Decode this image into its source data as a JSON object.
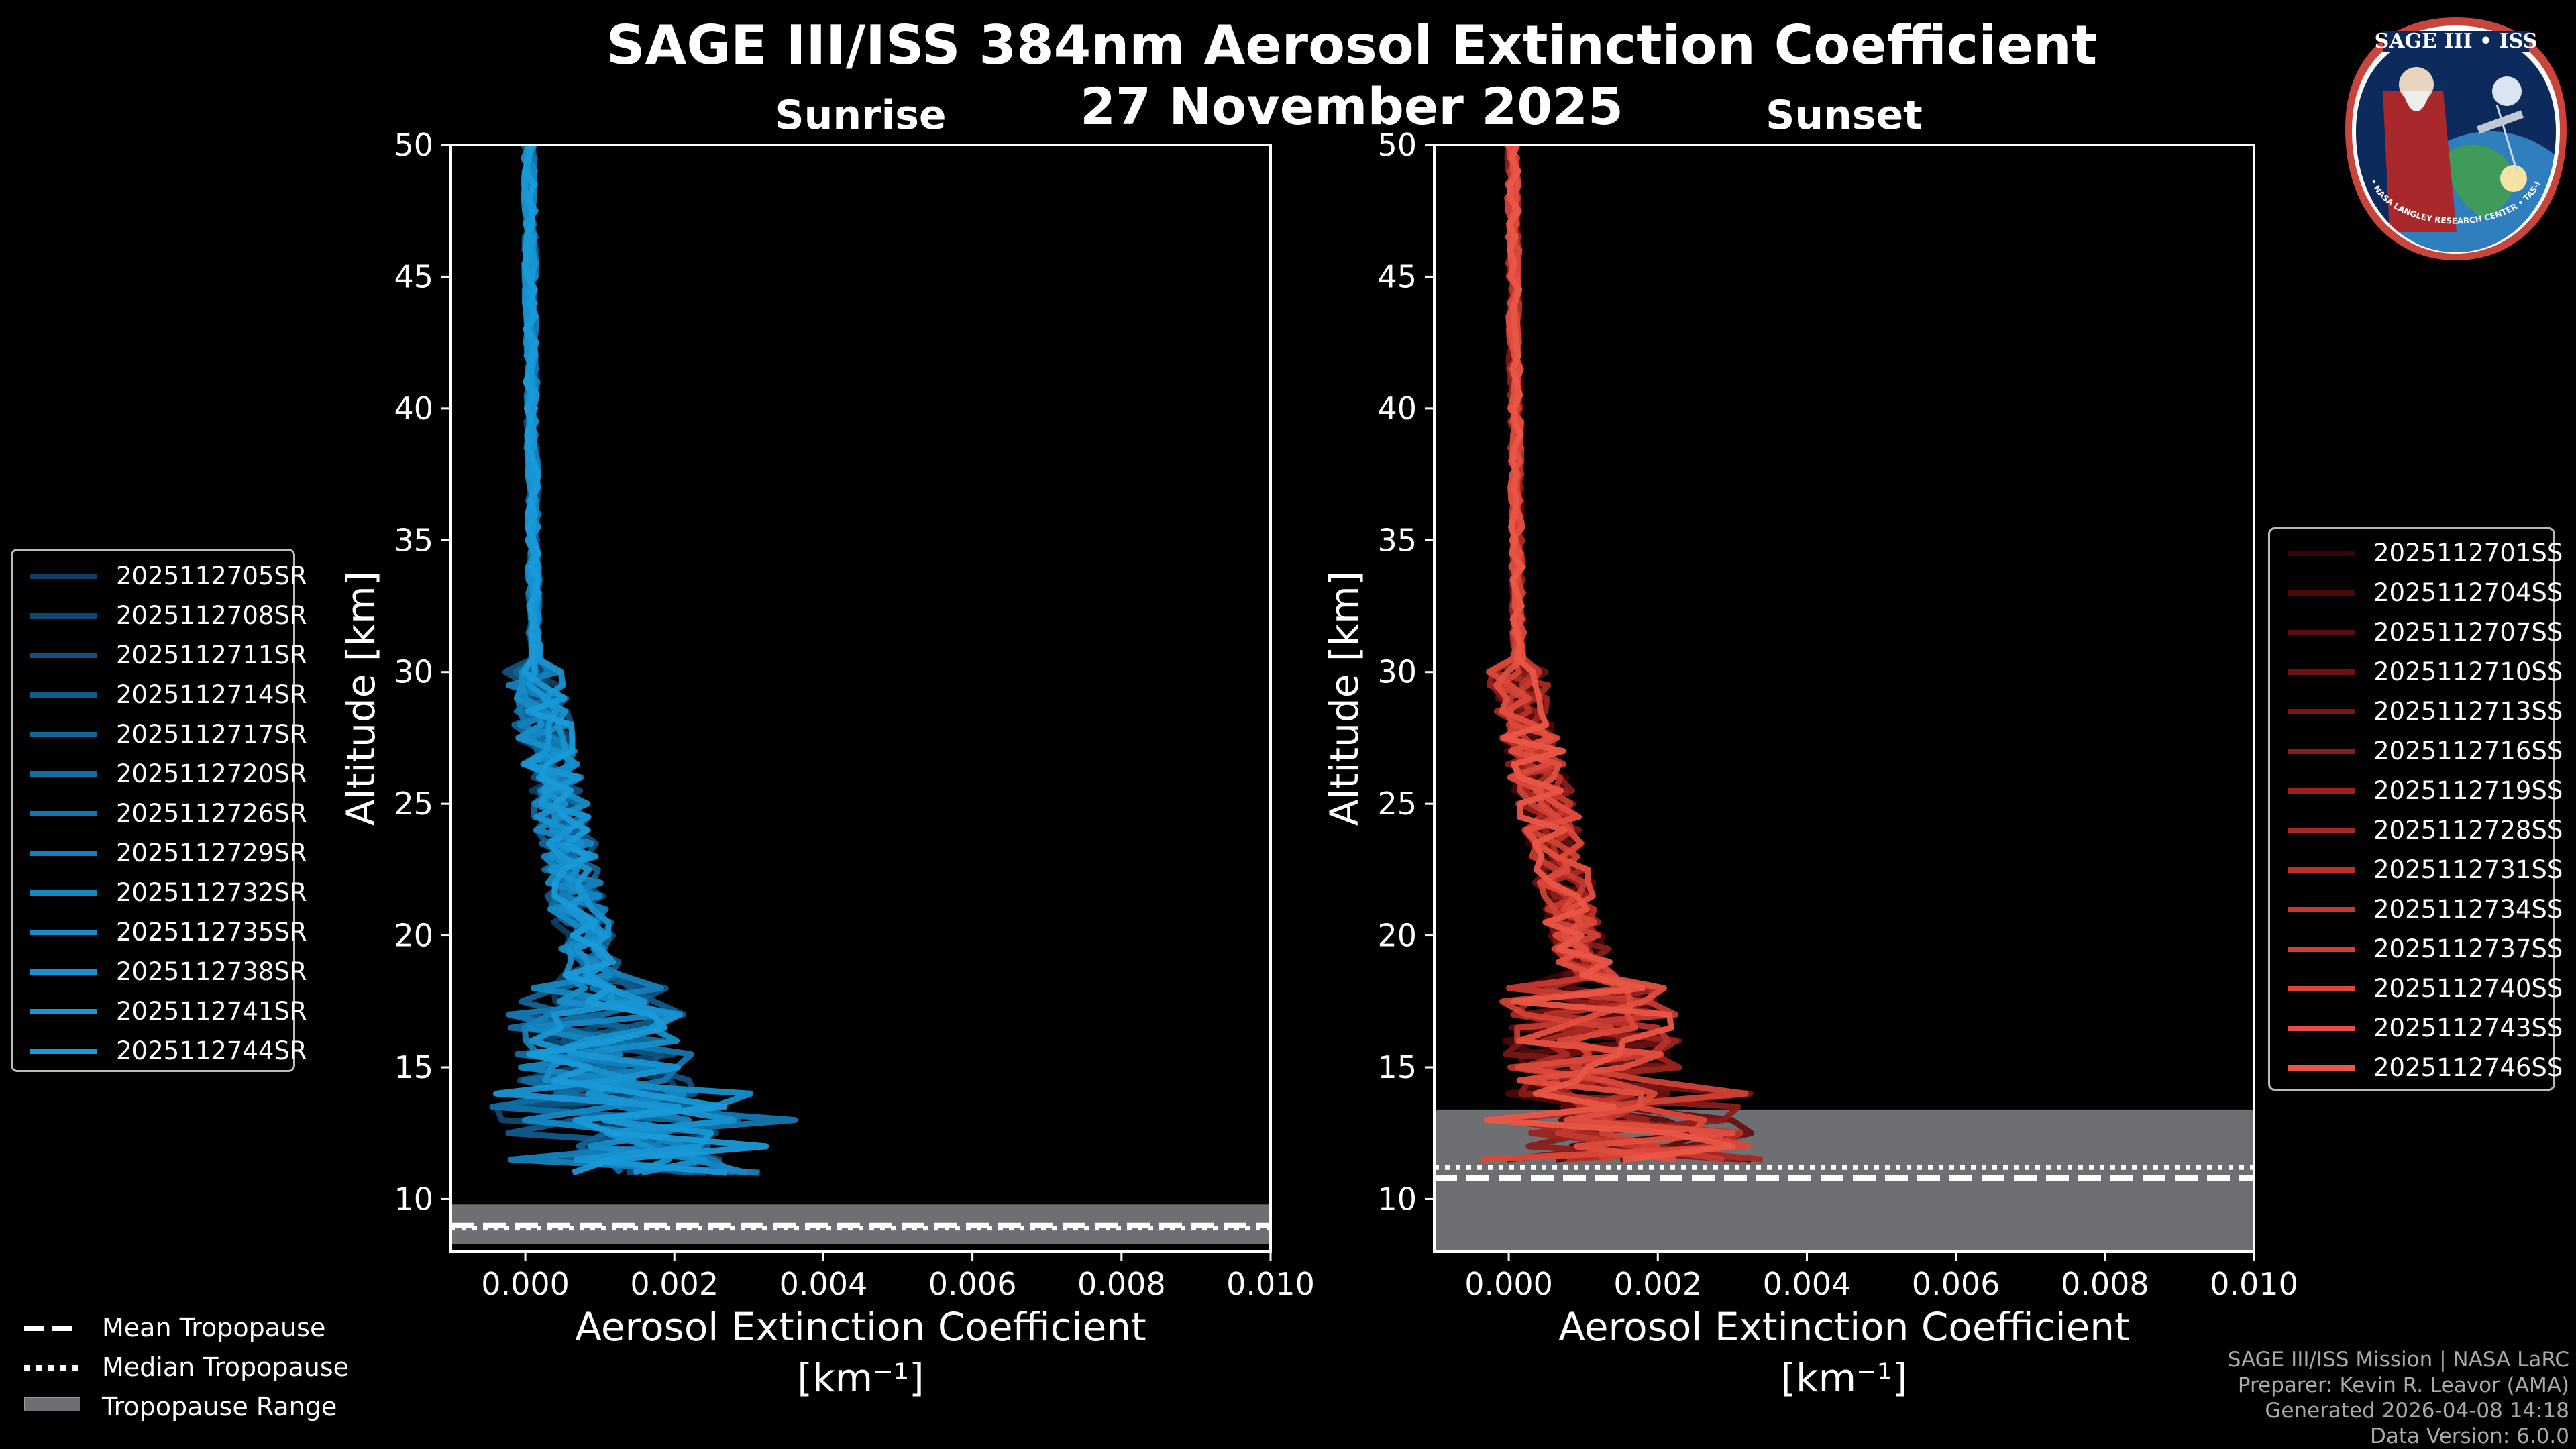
{
  "title": {
    "line1": "SAGE III/ISS 384nm Aerosol Extinction Coefficient",
    "line2": "27 November 2025"
  },
  "colors": {
    "background": "#000000",
    "sunrise_base": "#1a8fd0",
    "sunset_base": "#e8503f",
    "tropopause_range": "#6e6f73"
  },
  "chart_data": [
    {
      "type": "line",
      "subtitle": "Sunrise",
      "xlabel": "Aerosol Extinction Coefficient",
      "xlabel_units": "[km⁻¹]",
      "ylabel": "Altitude [km]",
      "xlim": [
        -0.001,
        0.01
      ],
      "ylim": [
        8,
        50
      ],
      "xticks": [
        "0.000",
        "0.002",
        "0.004",
        "0.006",
        "0.008",
        "0.010"
      ],
      "yticks": [
        "10",
        "15",
        "20",
        "25",
        "30",
        "35",
        "40",
        "45",
        "50"
      ],
      "tropopause": {
        "mean": 9.0,
        "median": 8.9,
        "range": [
          8.3,
          9.8
        ]
      },
      "series": [
        {
          "name": "2025112705SR",
          "color": "#0b3f63"
        },
        {
          "name": "2025112708SR",
          "color": "#0d4870"
        },
        {
          "name": "2025112711SR",
          "color": "#0f527e"
        },
        {
          "name": "2025112714SR",
          "color": "#105b8b"
        },
        {
          "name": "2025112717SR",
          "color": "#116496"
        },
        {
          "name": "2025112720SR",
          "color": "#126ea3"
        },
        {
          "name": "2025112726SR",
          "color": "#1377af"
        },
        {
          "name": "2025112729SR",
          "color": "#1480bb"
        },
        {
          "name": "2025112732SR",
          "color": "#1588c4"
        },
        {
          "name": "2025112735SR",
          "color": "#168ecb"
        },
        {
          "name": "2025112738SR",
          "color": "#1792d0"
        },
        {
          "name": "2025112741SR",
          "color": "#1896d4"
        },
        {
          "name": "2025112744SR",
          "color": "#199ad8"
        }
      ]
    },
    {
      "type": "line",
      "subtitle": "Sunset",
      "xlabel": "Aerosol Extinction Coefficient",
      "xlabel_units": "[km⁻¹]",
      "ylabel": "Altitude [km]",
      "xlim": [
        -0.001,
        0.01
      ],
      "ylim": [
        8,
        50
      ],
      "xticks": [
        "0.000",
        "0.002",
        "0.004",
        "0.006",
        "0.008",
        "0.010"
      ],
      "yticks": [
        "10",
        "15",
        "20",
        "25",
        "30",
        "35",
        "40",
        "45",
        "50"
      ],
      "tropopause": {
        "mean": 10.8,
        "median": 11.2,
        "range": [
          8.0,
          13.4
        ]
      },
      "series": [
        {
          "name": "2025112701SS",
          "color": "#3a0404"
        },
        {
          "name": "2025112704SS",
          "color": "#4a0808"
        },
        {
          "name": "2025112707SS",
          "color": "#5a0c0c"
        },
        {
          "name": "2025112710SS",
          "color": "#6a1111"
        },
        {
          "name": "2025112713SS",
          "color": "#7a1616"
        },
        {
          "name": "2025112716SS",
          "color": "#8a1c1a"
        },
        {
          "name": "2025112719SS",
          "color": "#9a231f"
        },
        {
          "name": "2025112728SS",
          "color": "#a92a24"
        },
        {
          "name": "2025112731SS",
          "color": "#b7312a"
        },
        {
          "name": "2025112734SS",
          "color": "#c43930"
        },
        {
          "name": "2025112737SS",
          "color": "#d04135"
        },
        {
          "name": "2025112740SS",
          "color": "#da483a"
        },
        {
          "name": "2025112743SS",
          "color": "#e24e3f"
        },
        {
          "name": "2025112746SS",
          "color": "#ea5646"
        }
      ]
    }
  ],
  "tropopause_legend": [
    {
      "label": "Mean Tropopause",
      "style": "dashed"
    },
    {
      "label": "Median Tropopause",
      "style": "dotted"
    },
    {
      "label": "Tropopause Range",
      "style": "box"
    }
  ],
  "footer": [
    "SAGE III/ISS Mission | NASA LaRC",
    "Preparer: Kevin R. Leavor (AMA)",
    "Generated 2026-04-08 14:18",
    "Data Version: 6.0.0"
  ],
  "logo": {
    "title": "SAGE III • ISS",
    "ring_text": "BALL • NASA LANGLEY RESEARCH CENTER • TAS-I • ESA"
  }
}
